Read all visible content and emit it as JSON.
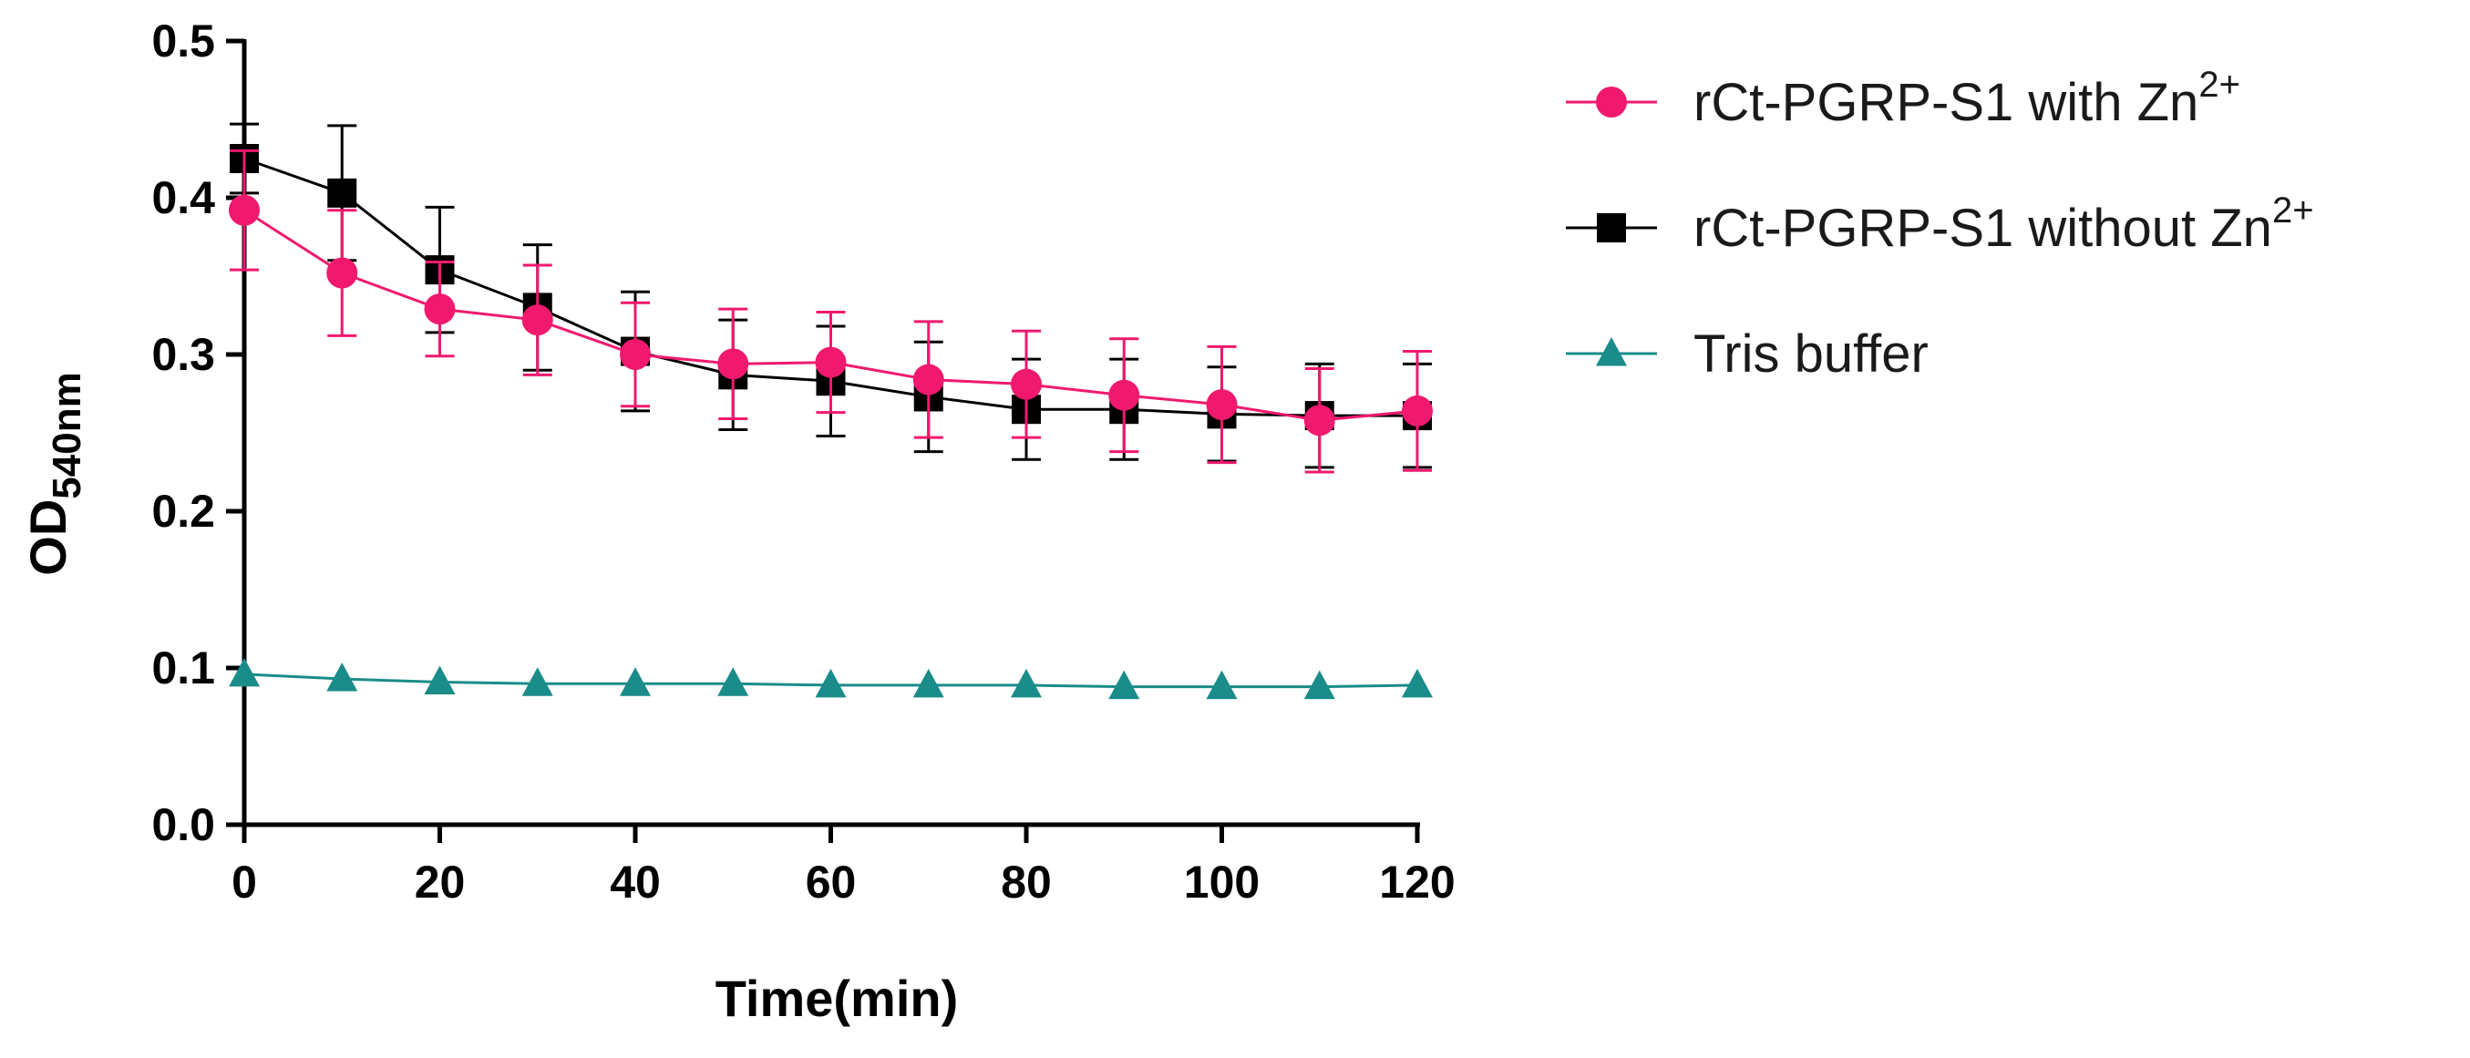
{
  "chart_data": {
    "type": "line",
    "title": "",
    "xlabel": "Time(min)",
    "ylabel": {
      "main": "OD",
      "subscript": "540nm"
    },
    "xlim": [
      0,
      120
    ],
    "ylim": [
      0.0,
      0.5
    ],
    "x_ticks": [
      "0",
      "20",
      "40",
      "60",
      "80",
      "100",
      "120"
    ],
    "y_ticks": [
      "0.0",
      "0.1",
      "0.2",
      "0.3",
      "0.4",
      "0.5"
    ],
    "x_tick_values": [
      0,
      20,
      40,
      60,
      80,
      100,
      120
    ],
    "y_tick_values": [
      0.0,
      0.1,
      0.2,
      0.3,
      0.4,
      0.5
    ],
    "x": [
      0,
      10,
      20,
      30,
      40,
      50,
      60,
      70,
      80,
      90,
      100,
      110,
      120
    ],
    "grid": false,
    "legend_position": "right",
    "series": [
      {
        "name": "rCt-PGRP-S1 with Zn",
        "superscript": "2+",
        "marker": "circle",
        "color": "#f0196e",
        "values": [
          0.392,
          0.352,
          0.329,
          0.322,
          0.3,
          0.294,
          0.295,
          0.284,
          0.281,
          0.274,
          0.268,
          0.258,
          0.264
        ],
        "errors": [
          0.038,
          0.04,
          0.03,
          0.035,
          0.033,
          0.035,
          0.032,
          0.037,
          0.034,
          0.036,
          0.037,
          0.033,
          0.038
        ]
      },
      {
        "name": "rCt-PGRP-S1 without Zn",
        "superscript": "2+",
        "marker": "square",
        "color": "#000000",
        "values": [
          0.425,
          0.403,
          0.354,
          0.33,
          0.302,
          0.287,
          0.283,
          0.273,
          0.265,
          0.265,
          0.262,
          0.261,
          0.261
        ],
        "errors": [
          0.022,
          0.043,
          0.04,
          0.04,
          0.038,
          0.035,
          0.035,
          0.035,
          0.032,
          0.032,
          0.03,
          0.033,
          0.033
        ]
      },
      {
        "name": "Tris buffer",
        "superscript": "",
        "marker": "triangle",
        "color": "#1a8c8a",
        "values": [
          0.096,
          0.093,
          0.091,
          0.09,
          0.09,
          0.09,
          0.089,
          0.089,
          0.089,
          0.088,
          0.088,
          0.088,
          0.089
        ],
        "errors": []
      }
    ]
  }
}
